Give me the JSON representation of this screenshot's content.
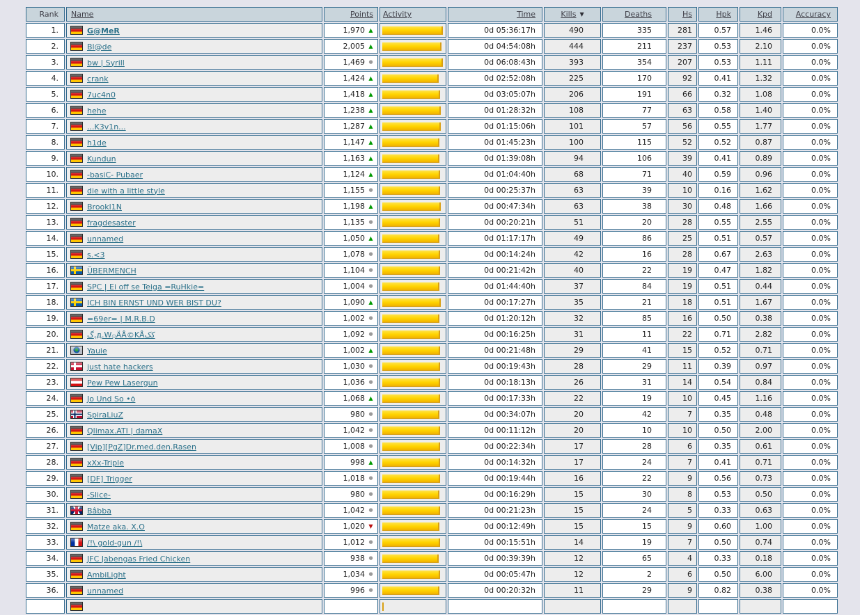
{
  "colors": {
    "page_bg": "#e4e4ec",
    "border_color": "#336b8e",
    "header_bg": "#c9d5dc",
    "header_text": "#3f3f48",
    "link_color": "#2a7089",
    "shade": "#ededed",
    "bar_yellow": "#ffd400",
    "trend_up": "#009900",
    "trend_down": "#bb1111",
    "trend_stable": "#9a9a9a",
    "text": "#1d1d1d"
  },
  "icons": {
    "trend_up": "▲",
    "trend_stable": "●",
    "trend_down": "▼",
    "sort_desc": "▼",
    "flag_names": {
      "de": "germany-flag-icon",
      "se": "sweden-flag-icon",
      "dk": "denmark-flag-icon",
      "at": "austria-flag-icon",
      "no": "norway-flag-icon",
      "uk": "united-kingdom-flag-icon",
      "fr": "france-flag-icon",
      "globe": "globe-flag-icon"
    }
  },
  "table": {
    "sorted_by": "Kills",
    "sort_direction": "desc",
    "columns": [
      {
        "key": "rank",
        "label": "Rank",
        "sortable": false
      },
      {
        "key": "name",
        "label": "Name",
        "sortable": true
      },
      {
        "key": "points",
        "label": "Points",
        "sortable": true
      },
      {
        "key": "activity",
        "label": "Activity",
        "sortable": true
      },
      {
        "key": "time",
        "label": "Time",
        "sortable": true
      },
      {
        "key": "kills",
        "label": "Kills",
        "sortable": true,
        "sorted": true
      },
      {
        "key": "deaths",
        "label": "Deaths",
        "sortable": true
      },
      {
        "key": "hs",
        "label": "Hs",
        "sortable": true
      },
      {
        "key": "hpk",
        "label": "Hpk",
        "sortable": true
      },
      {
        "key": "kpd",
        "label": "Kpd",
        "sortable": true
      },
      {
        "key": "accuracy",
        "label": "Accuracy",
        "sortable": true
      }
    ],
    "rows": [
      {
        "rank": "1.",
        "flag": "de",
        "name": "G@MeR",
        "bold": true,
        "points": "1,970",
        "trend": "up",
        "activity": 100,
        "time": "0d 05:36:17h",
        "kills": "490",
        "deaths": "335",
        "hs": "281",
        "hpk": "0.57",
        "kpd": "1.46",
        "accuracy": "0.0%"
      },
      {
        "rank": "2.",
        "flag": "de",
        "name": "Bl@de",
        "points": "2,005",
        "trend": "up",
        "activity": 98,
        "time": "0d 04:54:08h",
        "kills": "444",
        "deaths": "211",
        "hs": "237",
        "hpk": "0.53",
        "kpd": "2.10",
        "accuracy": "0.0%"
      },
      {
        "rank": "3.",
        "flag": "de",
        "name": "bw | Syrill",
        "points": "1,469",
        "trend": "stable",
        "activity": 100,
        "time": "0d 06:08:43h",
        "kills": "393",
        "deaths": "354",
        "hs": "207",
        "hpk": "0.53",
        "kpd": "1.11",
        "accuracy": "0.0%"
      },
      {
        "rank": "4.",
        "flag": "de",
        "name": "crank",
        "points": "1,424",
        "trend": "up",
        "activity": 93,
        "time": "0d 02:52:08h",
        "kills": "225",
        "deaths": "170",
        "hs": "92",
        "hpk": "0.41",
        "kpd": "1.32",
        "accuracy": "0.0%"
      },
      {
        "rank": "5.",
        "flag": "de",
        "name": "7uc4n0",
        "points": "1,418",
        "trend": "up",
        "activity": 95,
        "time": "0d 03:05:07h",
        "kills": "206",
        "deaths": "191",
        "hs": "66",
        "hpk": "0.32",
        "kpd": "1.08",
        "accuracy": "0.0%"
      },
      {
        "rank": "6.",
        "flag": "de",
        "name": "hehe",
        "points": "1,238",
        "trend": "up",
        "activity": 97,
        "time": "0d 01:28:32h",
        "kills": "108",
        "deaths": "77",
        "hs": "63",
        "hpk": "0.58",
        "kpd": "1.40",
        "accuracy": "0.0%"
      },
      {
        "rank": "7.",
        "flag": "de",
        "name": "...K3v1n...",
        "points": "1,287",
        "trend": "up",
        "activity": 97,
        "time": "0d 01:15:06h",
        "kills": "101",
        "deaths": "57",
        "hs": "56",
        "hpk": "0.55",
        "kpd": "1.77",
        "accuracy": "0.0%"
      },
      {
        "rank": "8.",
        "flag": "de",
        "name": "h1de",
        "points": "1,147",
        "trend": "up",
        "activity": 94,
        "time": "0d 01:45:23h",
        "kills": "100",
        "deaths": "115",
        "hs": "52",
        "hpk": "0.52",
        "kpd": "0.87",
        "accuracy": "0.0%"
      },
      {
        "rank": "9.",
        "flag": "de",
        "name": "Kundun",
        "points": "1,163",
        "trend": "up",
        "activity": 94,
        "time": "0d 01:39:08h",
        "kills": "94",
        "deaths": "106",
        "hs": "39",
        "hpk": "0.41",
        "kpd": "0.89",
        "accuracy": "0.0%"
      },
      {
        "rank": "10.",
        "flag": "de",
        "name": "-basiC- Pubaer",
        "points": "1,124",
        "trend": "up",
        "activity": 95,
        "time": "0d 01:04:40h",
        "kills": "68",
        "deaths": "71",
        "hs": "40",
        "hpk": "0.59",
        "kpd": "0.96",
        "accuracy": "0.0%"
      },
      {
        "rank": "11.",
        "flag": "de",
        "name": "die with a little style",
        "points": "1,155",
        "trend": "stable",
        "activity": 95,
        "time": "0d 00:25:37h",
        "kills": "63",
        "deaths": "39",
        "hs": "10",
        "hpk": "0.16",
        "kpd": "1.62",
        "accuracy": "0.0%"
      },
      {
        "rank": "12.",
        "flag": "de",
        "name": "Brookl1N",
        "points": "1,198",
        "trend": "up",
        "activity": 97,
        "time": "0d 00:47:34h",
        "kills": "63",
        "deaths": "38",
        "hs": "30",
        "hpk": "0.48",
        "kpd": "1.66",
        "accuracy": "0.0%"
      },
      {
        "rank": "13.",
        "flag": "de",
        "name": "fragdesaster",
        "points": "1,135",
        "trend": "stable",
        "activity": 95,
        "time": "0d 00:20:21h",
        "kills": "51",
        "deaths": "20",
        "hs": "28",
        "hpk": "0.55",
        "kpd": "2.55",
        "accuracy": "0.0%"
      },
      {
        "rank": "14.",
        "flag": "de",
        "name": "unnamed",
        "points": "1,050",
        "trend": "up",
        "activity": 94,
        "time": "0d 01:17:17h",
        "kills": "49",
        "deaths": "86",
        "hs": "25",
        "hpk": "0.51",
        "kpd": "0.57",
        "accuracy": "0.0%"
      },
      {
        "rank": "15.",
        "flag": "de",
        "name": "s.<3",
        "points": "1,078",
        "trend": "stable",
        "activity": 95,
        "time": "0d 00:14:24h",
        "kills": "42",
        "deaths": "16",
        "hs": "28",
        "hpk": "0.67",
        "kpd": "2.63",
        "accuracy": "0.0%"
      },
      {
        "rank": "16.",
        "flag": "se",
        "name": "ÜBERMENCH",
        "points": "1,104",
        "trend": "stable",
        "activity": 95,
        "time": "0d 00:21:42h",
        "kills": "40",
        "deaths": "22",
        "hs": "19",
        "hpk": "0.47",
        "kpd": "1.82",
        "accuracy": "0.0%"
      },
      {
        "rank": "17.",
        "flag": "de",
        "name": "SPC | Ei off se Teiga =RuHkie=",
        "points": "1,004",
        "trend": "stable",
        "activity": 94,
        "time": "0d 01:44:40h",
        "kills": "37",
        "deaths": "84",
        "hs": "19",
        "hpk": "0.51",
        "kpd": "0.44",
        "accuracy": "0.0%"
      },
      {
        "rank": "18.",
        "flag": "se",
        "name": "ICH BIN ERNST UND WER BIST DU?",
        "points": "1,090",
        "trend": "up",
        "activity": 96,
        "time": "0d 00:17:27h",
        "kills": "35",
        "deaths": "21",
        "hs": "18",
        "hpk": "0.51",
        "kpd": "1.67",
        "accuracy": "0.0%"
      },
      {
        "rank": "19.",
        "flag": "de",
        "name": "=69er= | M.R.B.D",
        "points": "1,002",
        "trend": "stable",
        "activity": 94,
        "time": "0d 01:20:12h",
        "kills": "32",
        "deaths": "85",
        "hs": "16",
        "hpk": "0.50",
        "kpd": "0.38",
        "accuracy": "0.0%"
      },
      {
        "rank": "20.",
        "flag": "de",
        "name": "گ,д.W۞ÄÅ©KÅکک",
        "points": "1,092",
        "trend": "stable",
        "activity": 95,
        "time": "0d 00:16:25h",
        "kills": "31",
        "deaths": "11",
        "hs": "22",
        "hpk": "0.71",
        "kpd": "2.82",
        "accuracy": "0.0%"
      },
      {
        "rank": "21.",
        "flag": "globe",
        "name": "Yauie",
        "points": "1,002",
        "trend": "up",
        "activity": 95,
        "time": "0d 00:21:48h",
        "kills": "29",
        "deaths": "41",
        "hs": "15",
        "hpk": "0.52",
        "kpd": "0.71",
        "accuracy": "0.0%"
      },
      {
        "rank": "22.",
        "flag": "dk",
        "name": "just hate hackers",
        "points": "1,030",
        "trend": "stable",
        "activity": 95,
        "time": "0d 00:19:43h",
        "kills": "28",
        "deaths": "29",
        "hs": "11",
        "hpk": "0.39",
        "kpd": "0.97",
        "accuracy": "0.0%"
      },
      {
        "rank": "23.",
        "flag": "at",
        "name": "Pew Pew Lasergun",
        "points": "1,036",
        "trend": "stable",
        "activity": 95,
        "time": "0d 00:18:13h",
        "kills": "26",
        "deaths": "31",
        "hs": "14",
        "hpk": "0.54",
        "kpd": "0.84",
        "accuracy": "0.0%"
      },
      {
        "rank": "24.",
        "flag": "de",
        "name": "Jo Und So •ȯ",
        "points": "1,068",
        "trend": "up",
        "activity": 95,
        "time": "0d 00:17:33h",
        "kills": "22",
        "deaths": "19",
        "hs": "10",
        "hpk": "0.45",
        "kpd": "1.16",
        "accuracy": "0.0%"
      },
      {
        "rank": "25.",
        "flag": "no",
        "name": "SpiraLiuZ",
        "points": "980",
        "trend": "stable",
        "activity": 94,
        "time": "0d 00:34:07h",
        "kills": "20",
        "deaths": "42",
        "hs": "7",
        "hpk": "0.35",
        "kpd": "0.48",
        "accuracy": "0.0%"
      },
      {
        "rank": "26.",
        "flag": "de",
        "name": "Qlimax.ATI | damaX",
        "points": "1,042",
        "trend": "stable",
        "activity": 95,
        "time": "0d 00:11:12h",
        "kills": "20",
        "deaths": "10",
        "hs": "10",
        "hpk": "0.50",
        "kpd": "2.00",
        "accuracy": "0.0%"
      },
      {
        "rank": "27.",
        "flag": "de",
        "name": "[Vip][PgZ]Dr.med.den.Rasen",
        "points": "1,008",
        "trend": "stable",
        "activity": 95,
        "time": "0d 00:22:34h",
        "kills": "17",
        "deaths": "28",
        "hs": "6",
        "hpk": "0.35",
        "kpd": "0.61",
        "accuracy": "0.0%"
      },
      {
        "rank": "28.",
        "flag": "de",
        "name": "xXx-Triple",
        "points": "998",
        "trend": "up",
        "activity": 95,
        "time": "0d 00:14:32h",
        "kills": "17",
        "deaths": "24",
        "hs": "7",
        "hpk": "0.41",
        "kpd": "0.71",
        "accuracy": "0.0%"
      },
      {
        "rank": "29.",
        "flag": "de",
        "name": "[DF] Trigger",
        "points": "1,018",
        "trend": "stable",
        "activity": 95,
        "time": "0d 00:19:44h",
        "kills": "16",
        "deaths": "22",
        "hs": "9",
        "hpk": "0.56",
        "kpd": "0.73",
        "accuracy": "0.0%"
      },
      {
        "rank": "30.",
        "flag": "de",
        "name": "-Slice-",
        "points": "980",
        "trend": "stable",
        "activity": 94,
        "time": "0d 00:16:29h",
        "kills": "15",
        "deaths": "30",
        "hs": "8",
        "hpk": "0.53",
        "kpd": "0.50",
        "accuracy": "0.0%"
      },
      {
        "rank": "31.",
        "flag": "uk",
        "name": "Bâbba",
        "points": "1,042",
        "trend": "stable",
        "activity": 95,
        "time": "0d 00:21:23h",
        "kills": "15",
        "deaths": "24",
        "hs": "5",
        "hpk": "0.33",
        "kpd": "0.63",
        "accuracy": "0.0%"
      },
      {
        "rank": "32.",
        "flag": "de",
        "name": "Matze aka. X.O",
        "points": "1,020",
        "trend": "down",
        "activity": 94,
        "time": "0d 00:12:49h",
        "kills": "15",
        "deaths": "15",
        "hs": "9",
        "hpk": "0.60",
        "kpd": "1.00",
        "accuracy": "0.0%"
      },
      {
        "rank": "33.",
        "flag": "fr",
        "name": "/!\\ gold-gun /!\\",
        "points": "1,012",
        "trend": "stable",
        "activity": 95,
        "time": "0d 00:15:51h",
        "kills": "14",
        "deaths": "19",
        "hs": "7",
        "hpk": "0.50",
        "kpd": "0.74",
        "accuracy": "0.0%"
      },
      {
        "rank": "34.",
        "flag": "de",
        "name": "JFC Jabengas Fried Chicken",
        "points": "938",
        "trend": "stable",
        "activity": 93,
        "time": "0d 00:39:39h",
        "kills": "12",
        "deaths": "65",
        "hs": "4",
        "hpk": "0.33",
        "kpd": "0.18",
        "accuracy": "0.0%"
      },
      {
        "rank": "35.",
        "flag": "de",
        "name": "AmbiLight",
        "points": "1,034",
        "trend": "stable",
        "activity": 95,
        "time": "0d 00:05:47h",
        "kills": "12",
        "deaths": "2",
        "hs": "6",
        "hpk": "0.50",
        "kpd": "6.00",
        "accuracy": "0.0%"
      },
      {
        "rank": "36.",
        "flag": "de",
        "name": "unnamed",
        "points": "996",
        "trend": "stable",
        "activity": 94,
        "time": "0d 00:20:32h",
        "kills": "11",
        "deaths": "29",
        "hs": "9",
        "hpk": "0.82",
        "kpd": "0.38",
        "accuracy": "0.0%"
      }
    ],
    "partial_row": {
      "flag": "de"
    }
  }
}
